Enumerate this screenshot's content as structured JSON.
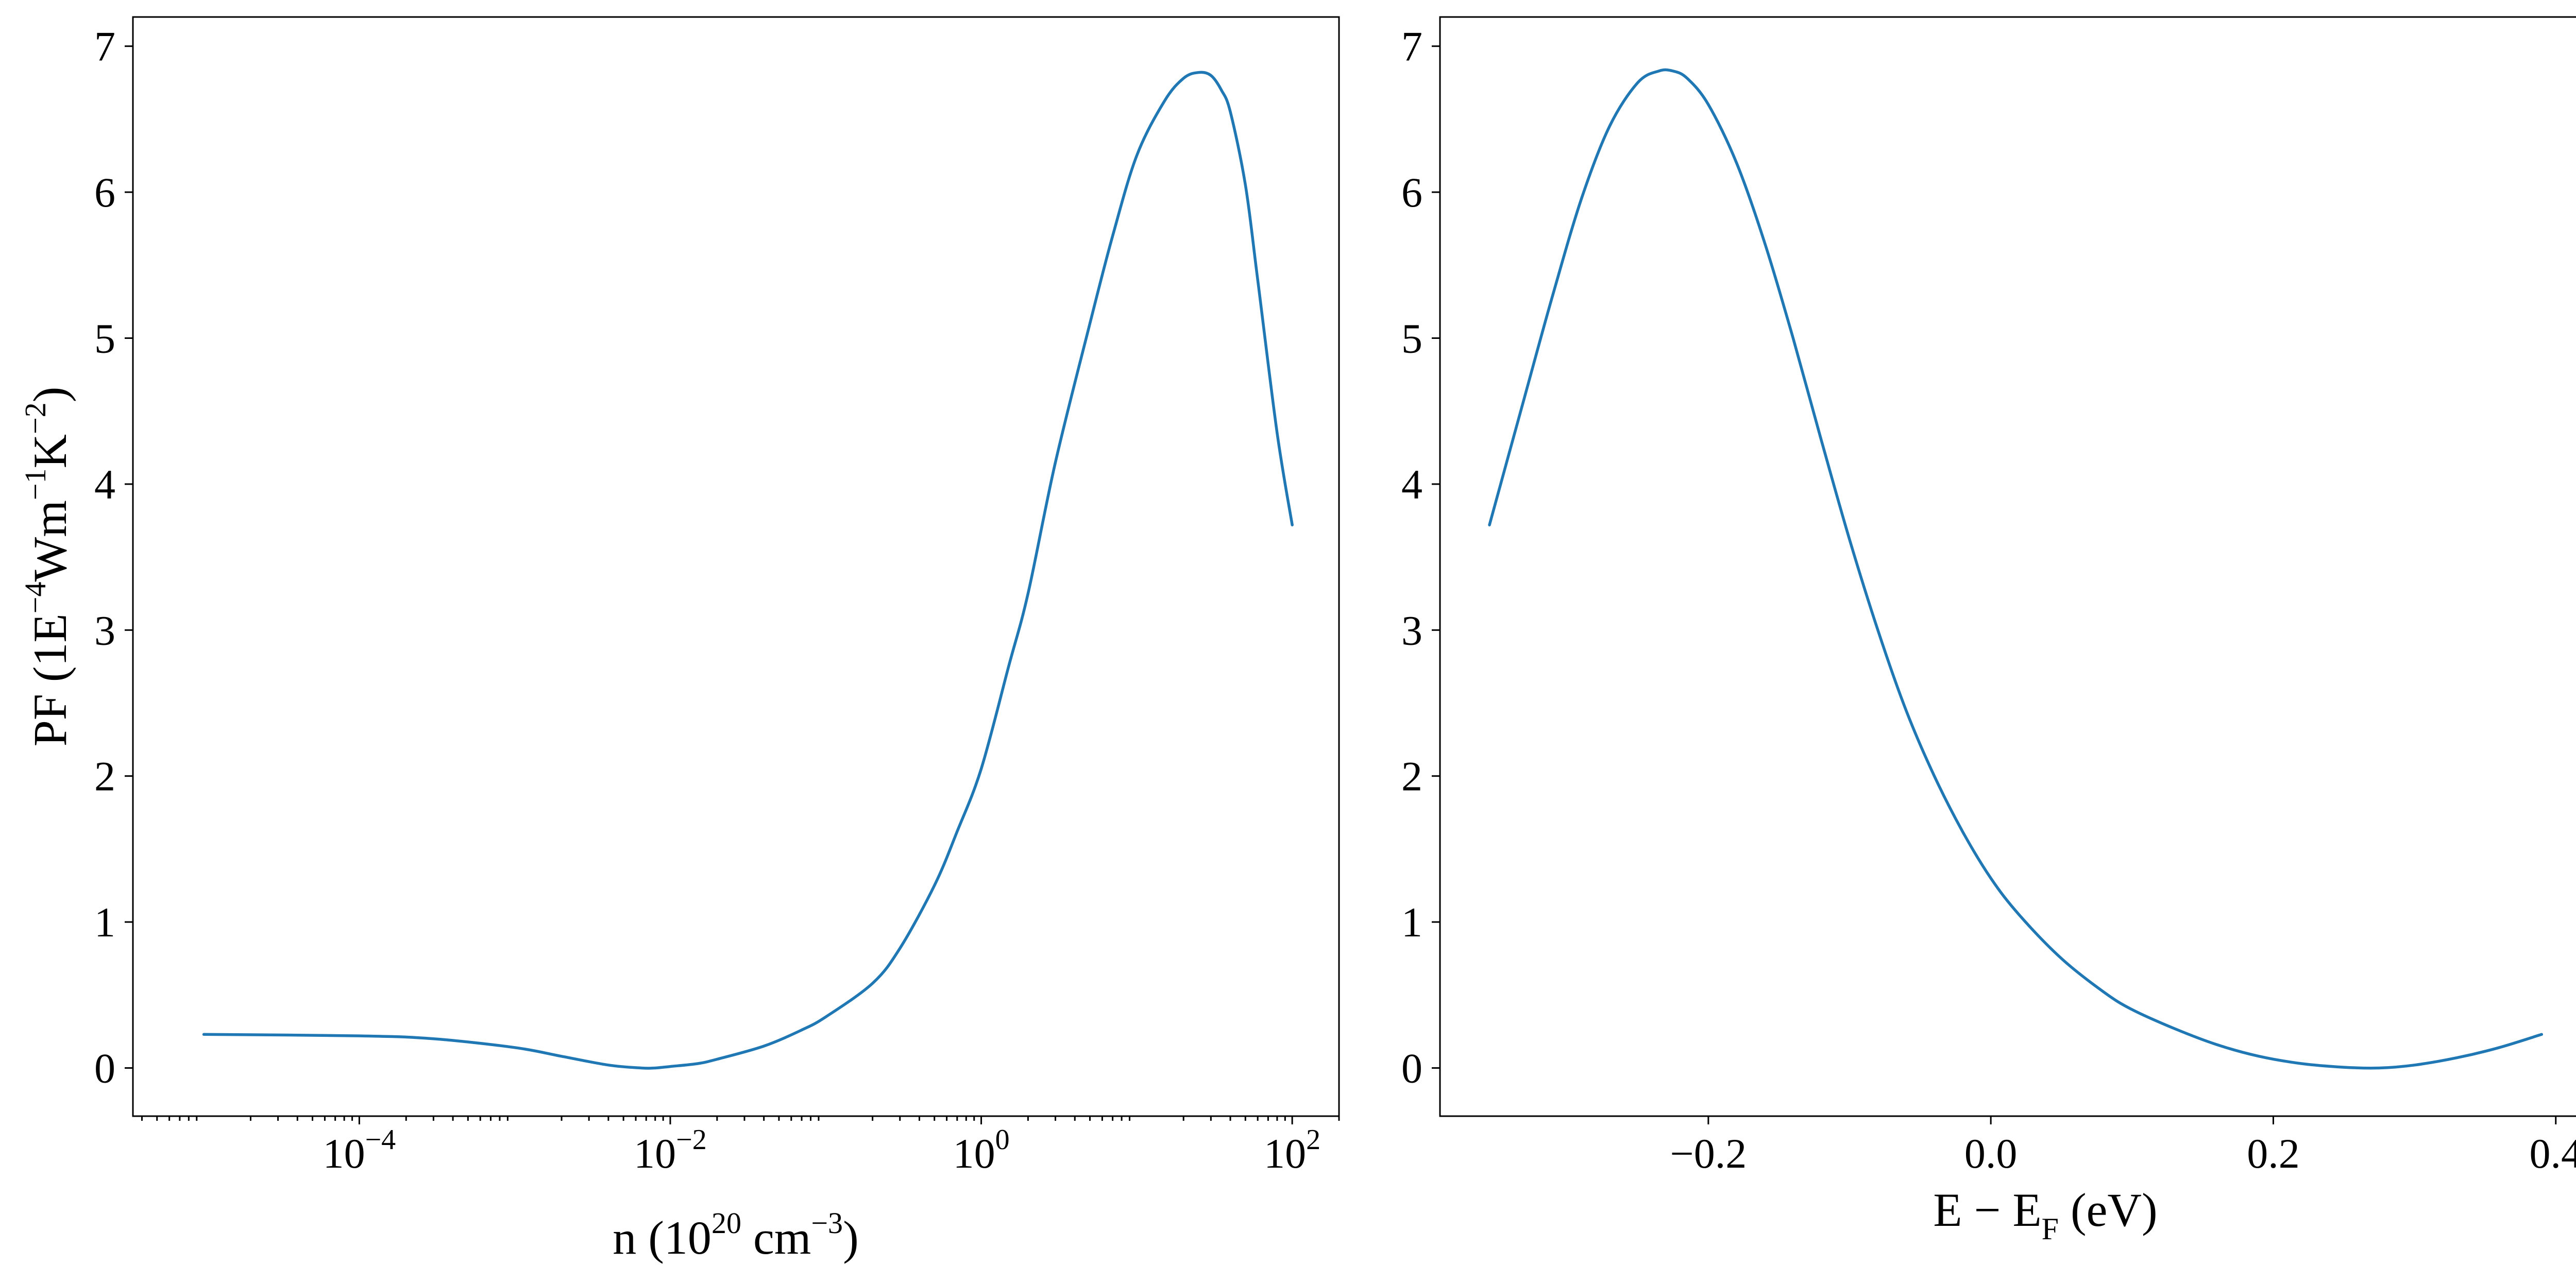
{
  "colors": {
    "series": "#1f77b4",
    "axes": "#000000",
    "background": "#ffffff"
  },
  "chart_data": [
    {
      "type": "line",
      "xscale": "log",
      "grid": false,
      "xlim": [
        3.5e-06,
        200
      ],
      "ylim": [
        -0.33,
        7.2
      ],
      "xlabel": {
        "pre": "n (10",
        "sup": "20",
        "mid": " cm",
        "sup2": "−3",
        "post": ")"
      },
      "ylabel": {
        "pre": "PF (1E",
        "sup1": "−4",
        "mid1": "Wm",
        "sup2": "−1",
        "mid2": "K",
        "sup3": "−2",
        "post": ")"
      },
      "yticks": [
        {
          "value": 0,
          "label": "0"
        },
        {
          "value": 1,
          "label": "1"
        },
        {
          "value": 2,
          "label": "2"
        },
        {
          "value": 3,
          "label": "3"
        },
        {
          "value": 4,
          "label": "4"
        },
        {
          "value": 5,
          "label": "5"
        },
        {
          "value": 6,
          "label": "6"
        },
        {
          "value": 7,
          "label": "7"
        }
      ],
      "xticks": [
        {
          "value": 0.0001,
          "base": "10",
          "exp": "−4"
        },
        {
          "value": 0.01,
          "base": "10",
          "exp": "−2"
        },
        {
          "value": 1,
          "base": "10",
          "exp": "0"
        },
        {
          "value": 100,
          "base": "10",
          "exp": "2"
        }
      ],
      "series": [
        {
          "x": [
            1e-05,
            0.0001,
            0.0003,
            0.001,
            0.002,
            0.004,
            0.0065,
            0.008,
            0.01,
            0.015,
            0.02,
            0.04,
            0.07,
            0.1,
            0.2,
            0.3,
            0.5,
            0.7,
            1,
            1.5,
            2,
            3,
            5,
            7,
            10,
            15,
            20,
            25,
            30,
            35,
            40,
            50,
            60,
            80,
            100
          ],
          "y": [
            0.23,
            0.22,
            0.2,
            0.14,
            0.08,
            0.02,
            0.0,
            0.0,
            0.01,
            0.03,
            0.06,
            0.15,
            0.26,
            0.35,
            0.58,
            0.82,
            1.25,
            1.62,
            2.05,
            2.75,
            3.25,
            4.15,
            5.1,
            5.7,
            6.25,
            6.62,
            6.78,
            6.82,
            6.8,
            6.7,
            6.55,
            6.05,
            5.4,
            4.35,
            3.72
          ]
        }
      ]
    },
    {
      "type": "line",
      "xscale": "linear",
      "grid": false,
      "xlim": [
        -0.39,
        0.43
      ],
      "ylim": [
        -0.33,
        7.2
      ],
      "xlabel": {
        "pre": "E − E",
        "sub": "F",
        "post": " (eV)"
      },
      "yticks": [
        {
          "value": 0,
          "label": "0"
        },
        {
          "value": 1,
          "label": "1"
        },
        {
          "value": 2,
          "label": "2"
        },
        {
          "value": 3,
          "label": "3"
        },
        {
          "value": 4,
          "label": "4"
        },
        {
          "value": 5,
          "label": "5"
        },
        {
          "value": 6,
          "label": "6"
        },
        {
          "value": 7,
          "label": "7"
        }
      ],
      "xticks": [
        {
          "value": -0.2,
          "label": "−0.2"
        },
        {
          "value": 0.0,
          "label": "0.0"
        },
        {
          "value": 0.2,
          "label": "0.2"
        },
        {
          "value": 0.4,
          "label": "0.4"
        }
      ],
      "series": [
        {
          "x": [
            -0.355,
            -0.33,
            -0.31,
            -0.29,
            -0.27,
            -0.25,
            -0.235,
            -0.225,
            -0.215,
            -0.2,
            -0.18,
            -0.16,
            -0.14,
            -0.12,
            -0.1,
            -0.08,
            -0.06,
            -0.04,
            -0.02,
            0.0,
            0.02,
            0.05,
            0.08,
            0.1,
            0.13,
            0.16,
            0.19,
            0.22,
            0.25,
            0.275,
            0.3,
            0.33,
            0.36,
            0.39
          ],
          "y": [
            3.72,
            4.6,
            5.3,
            5.95,
            6.45,
            6.75,
            6.83,
            6.83,
            6.78,
            6.6,
            6.2,
            5.65,
            5.0,
            4.3,
            3.62,
            3.0,
            2.45,
            2.0,
            1.62,
            1.3,
            1.05,
            0.75,
            0.52,
            0.4,
            0.27,
            0.16,
            0.08,
            0.03,
            0.005,
            0.0,
            0.02,
            0.07,
            0.14,
            0.23
          ]
        }
      ]
    }
  ]
}
